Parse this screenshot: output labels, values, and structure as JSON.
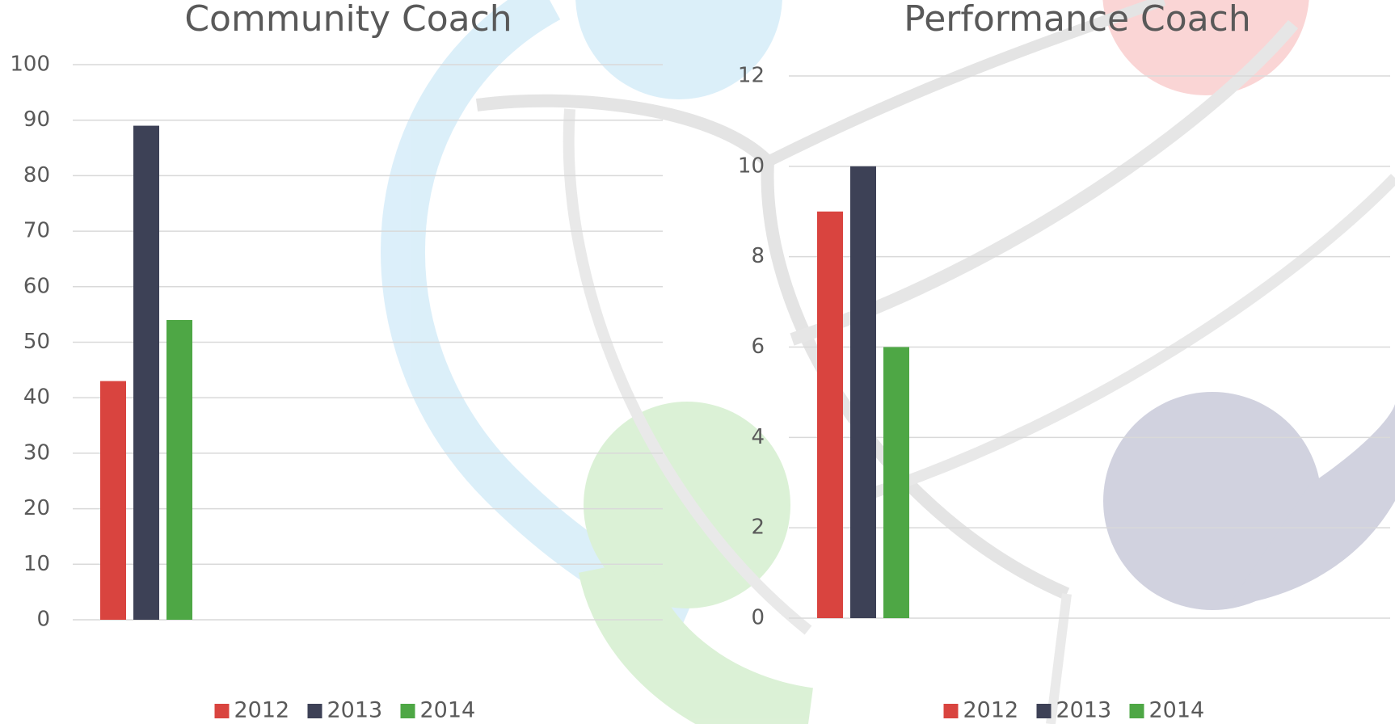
{
  "chart_data": [
    {
      "type": "bar",
      "title": "Community Coach",
      "categories": [
        null
      ],
      "series": [
        {
          "name": "2012",
          "color": "#d9443f",
          "values": [
            43
          ]
        },
        {
          "name": "2013",
          "color": "#3d4156",
          "values": [
            89
          ]
        },
        {
          "name": "2014",
          "color": "#4ea745",
          "values": [
            54
          ]
        }
      ],
      "ylim": [
        0,
        100
      ],
      "yticks": [
        0,
        10,
        20,
        30,
        40,
        50,
        60,
        70,
        80,
        90,
        100
      ],
      "grid": true,
      "legend": "bottom"
    },
    {
      "type": "bar",
      "title": "Performance Coach",
      "categories": [
        null
      ],
      "series": [
        {
          "name": "2012",
          "color": "#d9443f",
          "values": [
            9
          ]
        },
        {
          "name": "2013",
          "color": "#3d4156",
          "values": [
            10
          ]
        },
        {
          "name": "2014",
          "color": "#4ea745",
          "values": [
            6
          ]
        }
      ],
      "ylim": [
        0,
        12
      ],
      "yticks": [
        0,
        2,
        4,
        6,
        8,
        10,
        12
      ],
      "grid": true,
      "legend": "bottom"
    }
  ]
}
